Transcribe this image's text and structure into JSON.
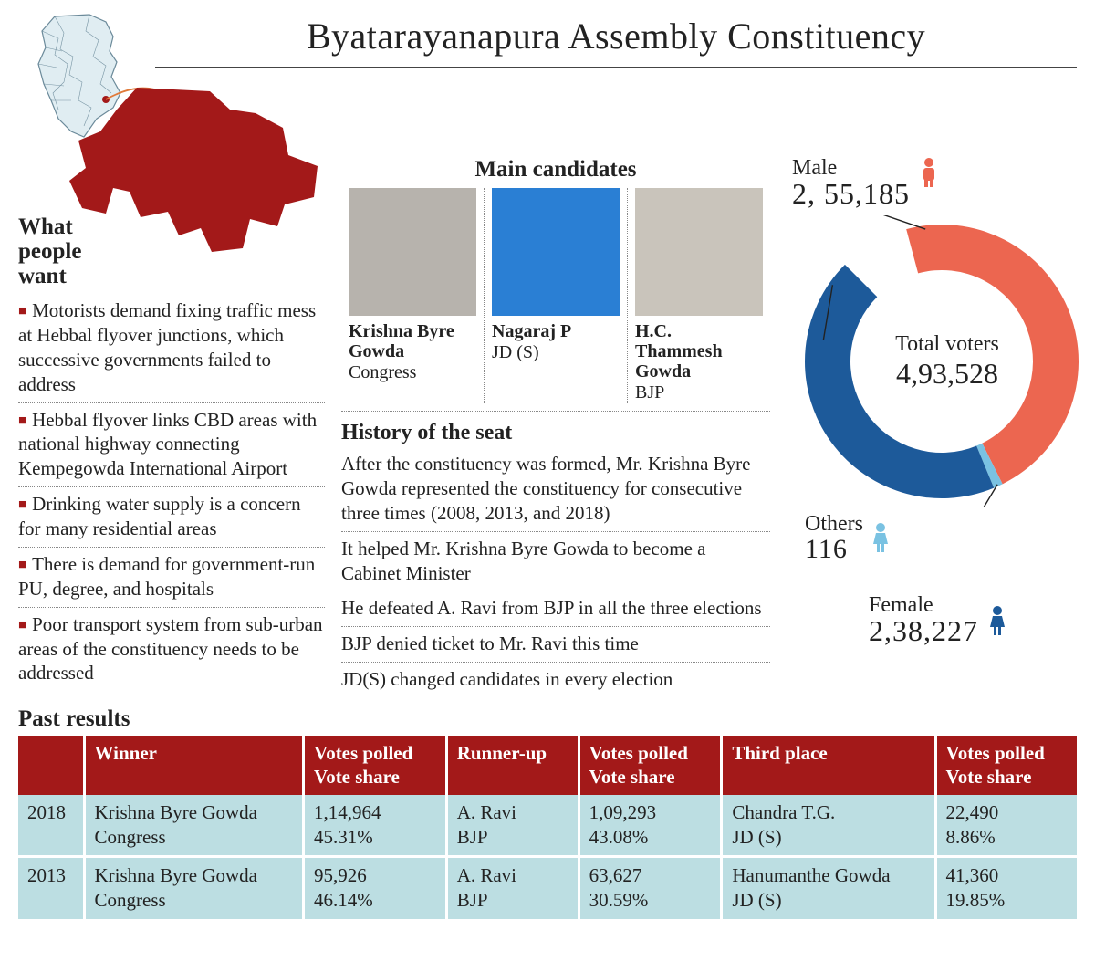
{
  "title": "Byatarayanapura Assembly Constituency",
  "colors": {
    "accent_red": "#a31919",
    "male": "#ec6650",
    "female": "#1d5a9a",
    "others": "#7ac2e2",
    "table_header": "#a31919",
    "table_row": "#bcdee2",
    "map_fill": "#a31919",
    "state_fill": "#e0edf2",
    "state_stroke": "#6b8a9a"
  },
  "what_people_want": {
    "title": "What people want",
    "items": [
      "Motorists demand fixing traffic mess at Hebbal flyover junctions, which successive governments failed to address",
      "Hebbal flyover links CBD areas with national highway connecting Kempegowda International Airport",
      "Drinking water supply is a concern for many residential areas",
      "There is demand for government-run PU, degree, and hospitals",
      "Poor transport system from sub-urban areas of the constituency needs to be addressed"
    ]
  },
  "candidates": {
    "title": "Main candidates",
    "list": [
      {
        "name": "Krishna Byre Gowda",
        "party": "Congress",
        "portrait_bg": "#b7b3ad"
      },
      {
        "name": "Nagaraj P",
        "party": "JD (S)",
        "portrait_bg": "#2a7fd4"
      },
      {
        "name": "H.C. Thammesh Gowda",
        "party": "BJP",
        "portrait_bg": "#c9c4bb"
      }
    ]
  },
  "history": {
    "title": "History of the seat",
    "items": [
      "After the constituency was formed, Mr. Krishna Byre Gowda represented the constituency for consecutive three times (2008, 2013, and 2018)",
      "It helped Mr. Krishna Byre Gowda to become a Cabinet Minister",
      "He defeated A. Ravi from BJP in all the three elections",
      "BJP denied ticket to Mr. Ravi this time",
      "JD(S) changed candidates in every election"
    ]
  },
  "voters": {
    "total_label": "Total voters",
    "total": "4,93,528",
    "male_label": "Male",
    "male": "2, 55,185",
    "female_label": "Female",
    "female": "2,38,227",
    "others_label": "Others",
    "others": "116",
    "donut": {
      "type": "donut",
      "outer_r": 150,
      "inner_r": 100,
      "gap_deg": 30,
      "start_deg": -105,
      "slices": [
        {
          "key": "male",
          "value": 255185,
          "color": "#ec6650"
        },
        {
          "key": "others",
          "value": 116,
          "color": "#7ac2e2",
          "min_deg": 4
        },
        {
          "key": "female",
          "value": 238227,
          "color": "#1d5a9a"
        }
      ]
    }
  },
  "past": {
    "title": "Past  results",
    "columns": [
      "",
      "Winner",
      "Votes polled Vote share",
      "Runner-up",
      "Votes polled Vote share",
      "Third place",
      "Votes polled Vote share"
    ],
    "rows": [
      {
        "year": "2018",
        "winner_name": "Krishna Byre Gowda",
        "winner_party": "Congress",
        "winner_votes": "1,14,964",
        "winner_share": "45.31%",
        "runner_name": "A. Ravi",
        "runner_party": "BJP",
        "runner_votes": "1,09,293",
        "runner_share": "43.08%",
        "third_name": "Chandra T.G.",
        "third_party": "JD (S)",
        "third_votes": "22,490",
        "third_share": "8.86%"
      },
      {
        "year": "2013",
        "winner_name": "Krishna Byre Gowda",
        "winner_party": "Congress",
        "winner_votes": "95,926",
        "winner_share": "46.14%",
        "runner_name": "A. Ravi",
        "runner_party": "BJP",
        "runner_votes": "63,627",
        "runner_share": "30.59%",
        "third_name": "Hanumanthe Gowda",
        "third_party": "JD (S)",
        "third_votes": "41,360",
        "third_share": "19.85%"
      }
    ]
  }
}
